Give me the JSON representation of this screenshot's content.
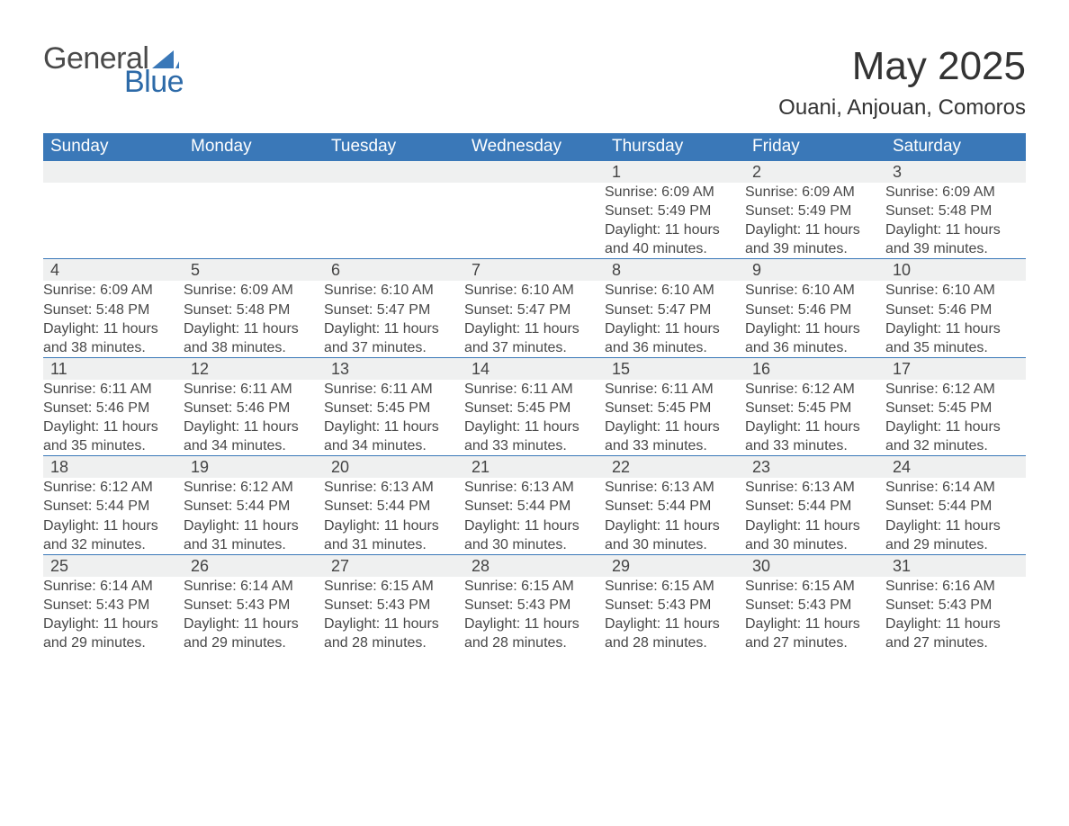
{
  "colors": {
    "brand_blue": "#3a78b8",
    "logo_blue_text": "#2d6aa8",
    "day_row_bg": "#eff0f0",
    "text_dark": "#383838",
    "text_cell": "#484848",
    "header_text": "#ffffff",
    "row_border": "#3a78b8",
    "page_bg": "#ffffff"
  },
  "typography": {
    "title_fontsize": 44,
    "location_fontsize": 24,
    "header_cell_fontsize": 19,
    "daynum_fontsize": 18,
    "body_fontsize": 16,
    "font_family": "Segoe UI, Arial, Helvetica, sans-serif"
  },
  "logo": {
    "word1": "General",
    "word2": "Blue",
    "icon_name": "sail-icon",
    "icon_fill": "#3a78b8"
  },
  "title": {
    "month_year": "May 2025",
    "location": "Ouani, Anjouan, Comoros"
  },
  "calendar": {
    "type": "table",
    "columns": [
      "Sunday",
      "Monday",
      "Tuesday",
      "Wednesday",
      "Thursday",
      "Friday",
      "Saturday"
    ],
    "labels": {
      "sunrise": "Sunrise",
      "sunset": "Sunset",
      "daylight": "Daylight"
    },
    "weeks": [
      [
        null,
        null,
        null,
        null,
        {
          "day": 1,
          "sunrise": "6:09 AM",
          "sunset": "5:49 PM",
          "daylight": "11 hours and 40 minutes."
        },
        {
          "day": 2,
          "sunrise": "6:09 AM",
          "sunset": "5:49 PM",
          "daylight": "11 hours and 39 minutes."
        },
        {
          "day": 3,
          "sunrise": "6:09 AM",
          "sunset": "5:48 PM",
          "daylight": "11 hours and 39 minutes."
        }
      ],
      [
        {
          "day": 4,
          "sunrise": "6:09 AM",
          "sunset": "5:48 PM",
          "daylight": "11 hours and 38 minutes."
        },
        {
          "day": 5,
          "sunrise": "6:09 AM",
          "sunset": "5:48 PM",
          "daylight": "11 hours and 38 minutes."
        },
        {
          "day": 6,
          "sunrise": "6:10 AM",
          "sunset": "5:47 PM",
          "daylight": "11 hours and 37 minutes."
        },
        {
          "day": 7,
          "sunrise": "6:10 AM",
          "sunset": "5:47 PM",
          "daylight": "11 hours and 37 minutes."
        },
        {
          "day": 8,
          "sunrise": "6:10 AM",
          "sunset": "5:47 PM",
          "daylight": "11 hours and 36 minutes."
        },
        {
          "day": 9,
          "sunrise": "6:10 AM",
          "sunset": "5:46 PM",
          "daylight": "11 hours and 36 minutes."
        },
        {
          "day": 10,
          "sunrise": "6:10 AM",
          "sunset": "5:46 PM",
          "daylight": "11 hours and 35 minutes."
        }
      ],
      [
        {
          "day": 11,
          "sunrise": "6:11 AM",
          "sunset": "5:46 PM",
          "daylight": "11 hours and 35 minutes."
        },
        {
          "day": 12,
          "sunrise": "6:11 AM",
          "sunset": "5:46 PM",
          "daylight": "11 hours and 34 minutes."
        },
        {
          "day": 13,
          "sunrise": "6:11 AM",
          "sunset": "5:45 PM",
          "daylight": "11 hours and 34 minutes."
        },
        {
          "day": 14,
          "sunrise": "6:11 AM",
          "sunset": "5:45 PM",
          "daylight": "11 hours and 33 minutes."
        },
        {
          "day": 15,
          "sunrise": "6:11 AM",
          "sunset": "5:45 PM",
          "daylight": "11 hours and 33 minutes."
        },
        {
          "day": 16,
          "sunrise": "6:12 AM",
          "sunset": "5:45 PM",
          "daylight": "11 hours and 33 minutes."
        },
        {
          "day": 17,
          "sunrise": "6:12 AM",
          "sunset": "5:45 PM",
          "daylight": "11 hours and 32 minutes."
        }
      ],
      [
        {
          "day": 18,
          "sunrise": "6:12 AM",
          "sunset": "5:44 PM",
          "daylight": "11 hours and 32 minutes."
        },
        {
          "day": 19,
          "sunrise": "6:12 AM",
          "sunset": "5:44 PM",
          "daylight": "11 hours and 31 minutes."
        },
        {
          "day": 20,
          "sunrise": "6:13 AM",
          "sunset": "5:44 PM",
          "daylight": "11 hours and 31 minutes."
        },
        {
          "day": 21,
          "sunrise": "6:13 AM",
          "sunset": "5:44 PM",
          "daylight": "11 hours and 30 minutes."
        },
        {
          "day": 22,
          "sunrise": "6:13 AM",
          "sunset": "5:44 PM",
          "daylight": "11 hours and 30 minutes."
        },
        {
          "day": 23,
          "sunrise": "6:13 AM",
          "sunset": "5:44 PM",
          "daylight": "11 hours and 30 minutes."
        },
        {
          "day": 24,
          "sunrise": "6:14 AM",
          "sunset": "5:44 PM",
          "daylight": "11 hours and 29 minutes."
        }
      ],
      [
        {
          "day": 25,
          "sunrise": "6:14 AM",
          "sunset": "5:43 PM",
          "daylight": "11 hours and 29 minutes."
        },
        {
          "day": 26,
          "sunrise": "6:14 AM",
          "sunset": "5:43 PM",
          "daylight": "11 hours and 29 minutes."
        },
        {
          "day": 27,
          "sunrise": "6:15 AM",
          "sunset": "5:43 PM",
          "daylight": "11 hours and 28 minutes."
        },
        {
          "day": 28,
          "sunrise": "6:15 AM",
          "sunset": "5:43 PM",
          "daylight": "11 hours and 28 minutes."
        },
        {
          "day": 29,
          "sunrise": "6:15 AM",
          "sunset": "5:43 PM",
          "daylight": "11 hours and 28 minutes."
        },
        {
          "day": 30,
          "sunrise": "6:15 AM",
          "sunset": "5:43 PM",
          "daylight": "11 hours and 27 minutes."
        },
        {
          "day": 31,
          "sunrise": "6:16 AM",
          "sunset": "5:43 PM",
          "daylight": "11 hours and 27 minutes."
        }
      ]
    ]
  }
}
